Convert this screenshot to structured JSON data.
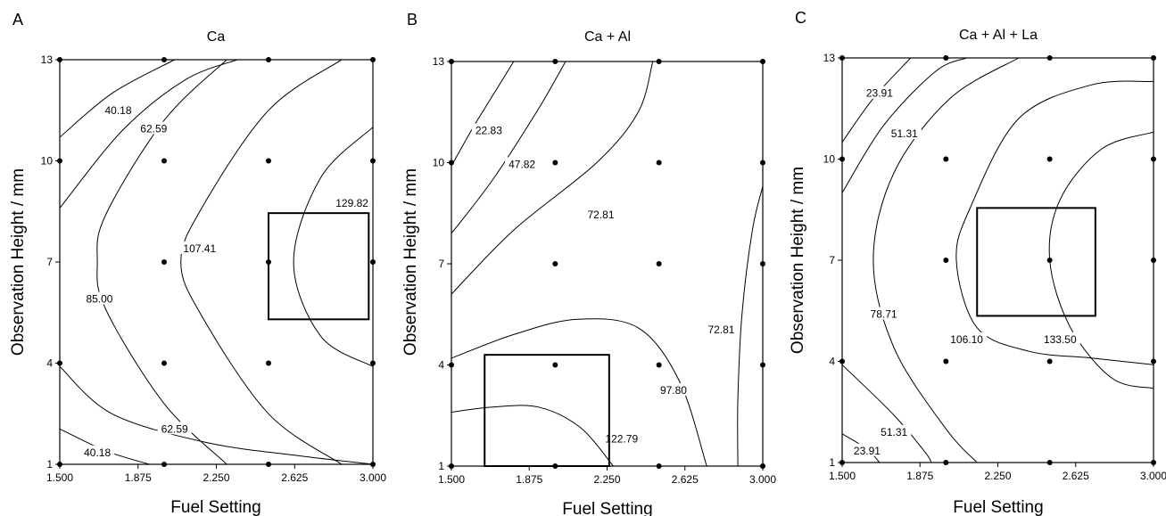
{
  "chart_data": [
    {
      "type": "contour",
      "panel_letter": "A",
      "title": "Ca",
      "xlabel": "Fuel Setting",
      "ylabel": "Observation Height / mm",
      "xlim": [
        1.5,
        3.0
      ],
      "ylim": [
        1,
        13
      ],
      "xticks": [
        "1.500",
        "1.875",
        "2.250",
        "2.625",
        "3.000"
      ],
      "yticks": [
        "1",
        "4",
        "7",
        "10",
        "13"
      ],
      "design_points": [
        [
          1.5,
          1
        ],
        [
          1.5,
          4
        ],
        [
          1.5,
          10
        ],
        [
          1.5,
          13
        ],
        [
          2.0,
          1
        ],
        [
          2.0,
          4
        ],
        [
          2.0,
          7
        ],
        [
          2.0,
          10
        ],
        [
          2.0,
          13
        ],
        [
          2.5,
          1
        ],
        [
          2.5,
          4
        ],
        [
          2.5,
          7
        ],
        [
          2.5,
          10
        ],
        [
          2.5,
          13
        ],
        [
          3.0,
          1
        ],
        [
          3.0,
          4
        ],
        [
          3.0,
          7
        ],
        [
          3.0,
          10
        ],
        [
          3.0,
          13
        ]
      ],
      "contours": [
        {
          "level": "40.18",
          "points": [
            [
              1.5,
              10.7
            ],
            [
              1.75,
              12.0
            ],
            [
              2.05,
              13
            ]
          ],
          "label_pos": [
            1.78,
            11.5
          ]
        },
        {
          "level": "62.59",
          "points": [
            [
              1.5,
              8.6
            ],
            [
              1.8,
              10.9
            ],
            [
              2.1,
              12.4
            ],
            [
              2.35,
              13
            ]
          ],
          "label_pos": [
            1.95,
            10.95
          ]
        },
        {
          "level": "85.00",
          "points": [
            [
              2.3,
              13
            ],
            [
              2.0,
              11.2
            ],
            [
              1.72,
              8.4
            ],
            [
              1.68,
              7.0
            ],
            [
              1.72,
              5.6
            ],
            [
              2.0,
              2.8
            ],
            [
              2.3,
              1
            ]
          ],
          "label_pos": [
            1.69,
            5.9
          ]
        },
        {
          "level": "107.41",
          "points": [
            [
              2.85,
              13
            ],
            [
              2.5,
              11.5
            ],
            [
              2.18,
              8.6
            ],
            [
              2.08,
              7.0
            ],
            [
              2.18,
              5.4
            ],
            [
              2.5,
              2.5
            ],
            [
              2.85,
              1
            ]
          ],
          "label_pos": [
            2.17,
            7.4
          ]
        },
        {
          "level": "129.82",
          "points": [
            [
              3.0,
              11.0
            ],
            [
              2.75,
              9.5
            ],
            [
              2.62,
              7.0
            ],
            [
              2.75,
              4.8
            ],
            [
              3.0,
              3.9
            ]
          ],
          "label_pos": [
            2.9,
            8.75
          ]
        },
        {
          "level": "62.59",
          "points": [
            [
              1.5,
              3.9
            ],
            [
              1.75,
              2.5
            ],
            [
              2.2,
              1.65
            ],
            [
              2.65,
              1.25
            ],
            [
              3.0,
              1.0
            ]
          ],
          "label_pos": [
            2.05,
            2.05
          ]
        },
        {
          "level": "40.18",
          "points": [
            [
              1.5,
              2.05
            ],
            [
              1.72,
              1.4
            ],
            [
              1.93,
              1.0
            ]
          ],
          "label_pos": [
            1.68,
            1.35
          ]
        }
      ],
      "box": {
        "x0": 2.5,
        "x1": 2.98,
        "y0": 5.3,
        "y1": 8.45
      }
    },
    {
      "type": "contour",
      "panel_letter": "B",
      "title": "Ca + Al",
      "xlabel": "Fuel Setting",
      "ylabel": "Observation Height / mm",
      "xlim": [
        1.5,
        3.0
      ],
      "ylim": [
        1,
        13
      ],
      "xticks": [
        "1.500",
        "1.875",
        "2.250",
        "2.625",
        "3.000"
      ],
      "yticks": [
        "1",
        "4",
        "7",
        "10",
        "13"
      ],
      "design_points": [
        [
          1.5,
          1
        ],
        [
          1.5,
          4
        ],
        [
          1.5,
          10
        ],
        [
          1.5,
          13
        ],
        [
          2.0,
          1
        ],
        [
          2.0,
          4
        ],
        [
          2.0,
          7
        ],
        [
          2.0,
          10
        ],
        [
          2.0,
          13
        ],
        [
          2.5,
          1
        ],
        [
          2.5,
          4
        ],
        [
          2.5,
          7
        ],
        [
          2.5,
          10
        ],
        [
          2.5,
          13
        ],
        [
          3.0,
          1
        ],
        [
          3.0,
          4
        ],
        [
          3.0,
          7
        ],
        [
          3.0,
          10
        ],
        [
          3.0,
          13
        ]
      ],
      "contours": [
        {
          "level": "22.83",
          "points": [
            [
              1.5,
              9.9
            ],
            [
              1.6,
              11.0
            ],
            [
              1.7,
              12.0
            ],
            [
              1.8,
              13
            ]
          ],
          "label_pos": [
            1.68,
            10.95
          ]
        },
        {
          "level": "47.82",
          "points": [
            [
              1.5,
              7.9
            ],
            [
              1.7,
              9.5
            ],
            [
              1.92,
              11.6
            ],
            [
              2.05,
              13
            ]
          ],
          "label_pos": [
            1.84,
            9.95
          ]
        },
        {
          "level": "72.81",
          "points": [
            [
              1.5,
              6.1
            ],
            [
              1.8,
              8.0
            ],
            [
              2.2,
              10.0
            ],
            [
              2.4,
              11.5
            ],
            [
              2.47,
              13
            ]
          ],
          "label_pos": [
            2.22,
            8.45
          ]
        },
        {
          "level": "72.81",
          "points": [
            [
              3.0,
              9.3
            ],
            [
              2.95,
              8.0
            ],
            [
              2.9,
              5.5
            ],
            [
              2.88,
              3.0
            ],
            [
              2.88,
              1
            ]
          ],
          "label_pos": [
            2.8,
            5.05
          ]
        },
        {
          "level": "97.80",
          "points": [
            [
              1.5,
              4.2
            ],
            [
              1.8,
              4.9
            ],
            [
              2.1,
              5.35
            ],
            [
              2.4,
              5.1
            ],
            [
              2.6,
              3.5
            ],
            [
              2.73,
              1.0
            ]
          ],
          "label_pos": [
            2.57,
            3.25
          ]
        },
        {
          "level": "122.79",
          "points": [
            [
              1.5,
              2.6
            ],
            [
              1.7,
              2.75
            ],
            [
              1.92,
              2.75
            ],
            [
              2.12,
              2.15
            ],
            [
              2.28,
              1.0
            ]
          ],
          "label_pos": [
            2.32,
            1.8
          ]
        }
      ],
      "box": {
        "x0": 1.66,
        "x1": 2.26,
        "y0": 1.0,
        "y1": 4.3
      }
    },
    {
      "type": "contour",
      "panel_letter": "C",
      "title": "Ca + Al + La",
      "xlabel": "Fuel Setting",
      "ylabel": "Observation Height / mm",
      "xlim": [
        1.5,
        3.0
      ],
      "ylim": [
        1,
        13
      ],
      "xticks": [
        "1.500",
        "1.875",
        "2.250",
        "2.625",
        "3.000"
      ],
      "yticks": [
        "1",
        "4",
        "7",
        "10",
        "13"
      ],
      "design_points": [
        [
          1.5,
          1
        ],
        [
          1.5,
          4
        ],
        [
          1.5,
          10
        ],
        [
          1.5,
          13
        ],
        [
          2.0,
          1
        ],
        [
          2.0,
          4
        ],
        [
          2.0,
          7
        ],
        [
          2.0,
          10
        ],
        [
          2.0,
          13
        ],
        [
          2.5,
          1
        ],
        [
          2.5,
          4
        ],
        [
          2.5,
          7
        ],
        [
          2.5,
          10
        ],
        [
          2.5,
          13
        ],
        [
          3.0,
          1
        ],
        [
          3.0,
          4
        ],
        [
          3.0,
          7
        ],
        [
          3.0,
          10
        ],
        [
          3.0,
          13
        ]
      ],
      "contours": [
        {
          "level": "23.91",
          "points": [
            [
              1.5,
              10.5
            ],
            [
              1.65,
              11.8
            ],
            [
              1.83,
              13
            ]
          ],
          "label_pos": [
            1.68,
            11.95
          ]
        },
        {
          "level": "51.31",
          "points": [
            [
              1.5,
              9.0
            ],
            [
              1.7,
              11.0
            ],
            [
              1.95,
              12.6
            ],
            [
              2.1,
              13
            ]
          ],
          "label_pos": [
            1.8,
            10.75
          ]
        },
        {
          "level": "78.71",
          "points": [
            [
              2.35,
              13
            ],
            [
              2.02,
              11.8
            ],
            [
              1.75,
              9.6
            ],
            [
              1.65,
              7.0
            ],
            [
              1.75,
              4.4
            ],
            [
              2.0,
              2.0
            ],
            [
              2.15,
              1.0
            ]
          ],
          "label_pos": [
            1.7,
            5.4
          ]
        },
        {
          "level": "106.10",
          "points": [
            [
              3.0,
              12.3
            ],
            [
              2.7,
              12.2
            ],
            [
              2.35,
              11.2
            ],
            [
              2.12,
              8.6
            ],
            [
              2.05,
              7.0
            ],
            [
              2.15,
              5.0
            ],
            [
              2.4,
              4.3
            ],
            [
              2.7,
              4.1
            ],
            [
              3.0,
              3.9
            ]
          ],
          "label_pos": [
            2.1,
            4.65
          ]
        },
        {
          "level": "133.50",
          "points": [
            [
              3.0,
              10.8
            ],
            [
              2.75,
              10.3
            ],
            [
              2.55,
              8.8
            ],
            [
              2.5,
              7.0
            ],
            [
              2.6,
              5.0
            ],
            [
              2.8,
              3.5
            ],
            [
              3.0,
              3.2
            ]
          ],
          "label_pos": [
            2.55,
            4.65
          ]
        },
        {
          "level": "51.31",
          "points": [
            [
              1.5,
              3.9
            ],
            [
              1.75,
              2.4
            ],
            [
              1.9,
              1.3
            ],
            [
              1.93,
              1.0
            ]
          ],
          "label_pos": [
            1.75,
            1.9
          ]
        },
        {
          "level": "23.91",
          "points": [
            [
              1.5,
              1.85
            ],
            [
              1.62,
              1.4
            ],
            [
              1.68,
              1.0
            ]
          ],
          "label_pos": [
            1.62,
            1.35
          ]
        }
      ],
      "box": {
        "x0": 2.15,
        "x1": 2.72,
        "y0": 5.35,
        "y1": 8.55
      }
    }
  ]
}
